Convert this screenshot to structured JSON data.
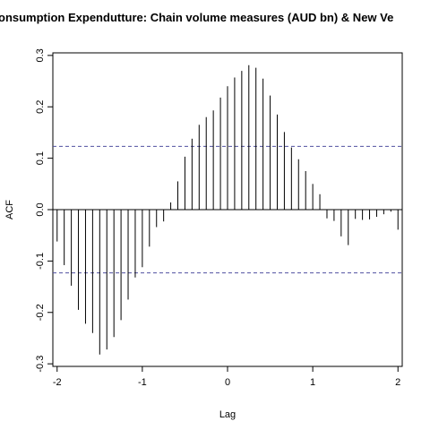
{
  "chart_data": {
    "type": "bar",
    "title": "onsumption Expendutture: Chain volume measures (AUD bn) & New Ve",
    "xlabel": "Lag",
    "ylabel": "ACF",
    "xlim": [
      -2.05,
      2.05
    ],
    "ylim": [
      -0.305,
      0.305
    ],
    "x_ticks": [
      -2,
      -1,
      0,
      1,
      2
    ],
    "y_ticks": [
      -0.3,
      -0.2,
      -0.1,
      0.0,
      0.1,
      0.2,
      0.3
    ],
    "x_tick_labels": [
      "-2",
      "-1",
      "0",
      "1",
      "2"
    ],
    "y_tick_labels": [
      "-0.3",
      "-0.2",
      "-0.1",
      "0.0",
      "0.1",
      "0.2",
      "0.3"
    ],
    "confidence_bound": 0.123,
    "grid": false,
    "colors": {
      "bars": "#000000",
      "zero_line": "#000000",
      "confidence": "#5050a0",
      "frame": "#000000"
    },
    "x": [
      -2.0,
      -1.9167,
      -1.8333,
      -1.75,
      -1.6667,
      -1.5833,
      -1.5,
      -1.4167,
      -1.3333,
      -1.25,
      -1.1667,
      -1.0833,
      -1.0,
      -0.9167,
      -0.8333,
      -0.75,
      -0.6667,
      -0.5833,
      -0.5,
      -0.4167,
      -0.3333,
      -0.25,
      -0.1667,
      -0.0833,
      0.0,
      0.0833,
      0.1667,
      0.25,
      0.3333,
      0.4167,
      0.5,
      0.5833,
      0.6667,
      0.75,
      0.8333,
      0.9167,
      1.0,
      1.0833,
      1.1667,
      1.25,
      1.3333,
      1.4167,
      1.5,
      1.5833,
      1.6667,
      1.75,
      1.8333,
      1.9167,
      2.0
    ],
    "values": [
      -0.062,
      -0.108,
      -0.148,
      -0.195,
      -0.222,
      -0.24,
      -0.282,
      -0.272,
      -0.248,
      -0.215,
      -0.175,
      -0.132,
      -0.112,
      -0.072,
      -0.034,
      -0.023,
      0.014,
      0.055,
      0.103,
      0.138,
      0.165,
      0.18,
      0.193,
      0.218,
      0.24,
      0.257,
      0.27,
      0.281,
      0.276,
      0.255,
      0.222,
      0.185,
      0.151,
      0.121,
      0.098,
      0.075,
      0.05,
      0.03,
      -0.017,
      -0.022,
      -0.052,
      -0.069,
      -0.018,
      -0.02,
      -0.019,
      -0.014,
      -0.009,
      -0.004,
      -0.039
    ]
  }
}
